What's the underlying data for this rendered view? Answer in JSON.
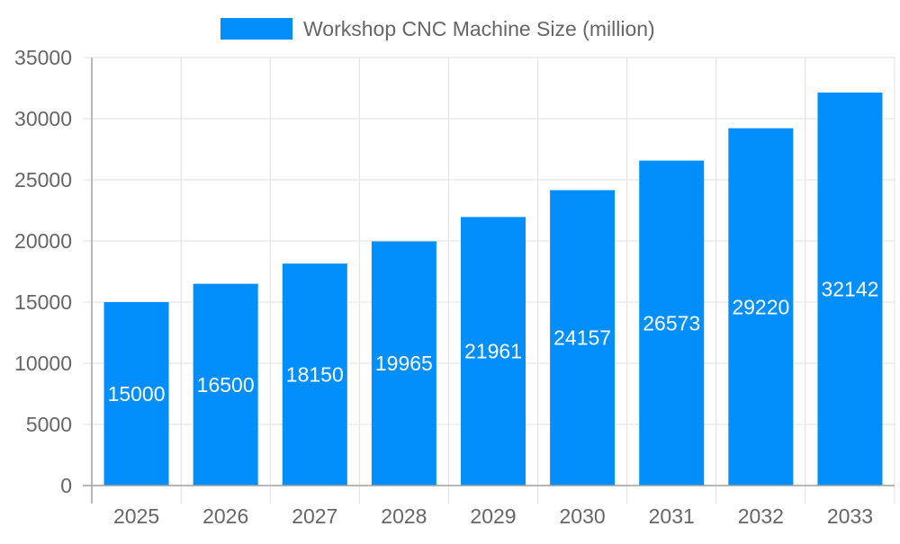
{
  "chart_data": {
    "type": "bar",
    "categories": [
      "2025",
      "2026",
      "2027",
      "2028",
      "2029",
      "2030",
      "2031",
      "2032",
      "2033"
    ],
    "series": [
      {
        "name": "Workshop CNC Machine Size (million)",
        "values": [
          15000,
          16500,
          18150,
          19965,
          21961,
          24157,
          26573,
          29220,
          32142
        ]
      }
    ],
    "yticks": [
      0,
      5000,
      10000,
      15000,
      20000,
      25000,
      30000,
      35000
    ],
    "ylim": [
      0,
      35000
    ],
    "grid": true,
    "legend": "top",
    "data_labels": true,
    "colors": {
      "bar": "#038ffb",
      "grid": "#e0e0e0",
      "axis": "#a0a0a0",
      "text": "#666666",
      "label": "#ffffff"
    }
  }
}
